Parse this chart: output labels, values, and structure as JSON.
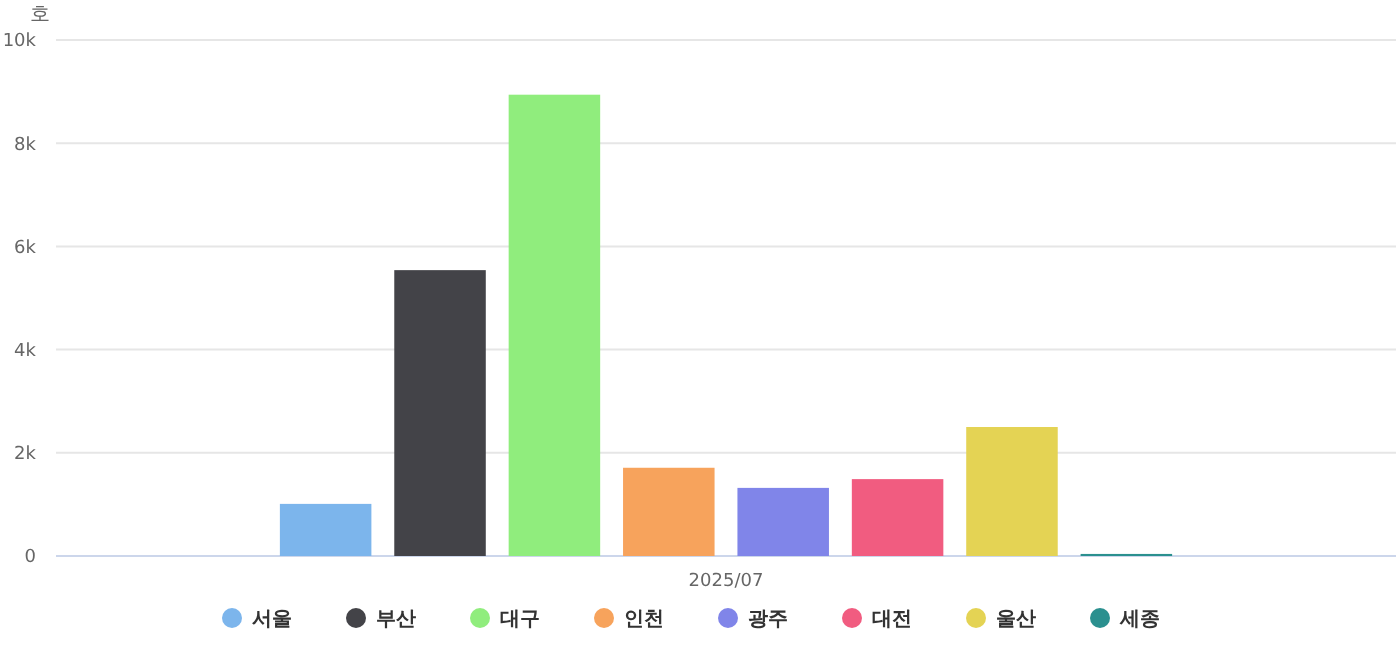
{
  "chart_data": {
    "type": "bar",
    "ylabel": "호",
    "categories": [
      "2025/07"
    ],
    "series": [
      {
        "name": "서울",
        "color": "#7cb5ec",
        "values": [
          1010
        ]
      },
      {
        "name": "부산",
        "color": "#434348",
        "values": [
          5540
        ]
      },
      {
        "name": "대구",
        "color": "#90ed7d",
        "values": [
          8940
        ]
      },
      {
        "name": "인천",
        "color": "#f7a35c",
        "values": [
          1710
        ]
      },
      {
        "name": "광주",
        "color": "#8085e9",
        "values": [
          1320
        ]
      },
      {
        "name": "대전",
        "color": "#f15c80",
        "values": [
          1490
        ]
      },
      {
        "name": "울산",
        "color": "#e4d354",
        "values": [
          2500
        ]
      },
      {
        "name": "세종",
        "color": "#2b908f",
        "values": [
          40
        ]
      }
    ],
    "ylim": [
      0,
      10000
    ],
    "yticks": [
      {
        "value": 0,
        "label": "0"
      },
      {
        "value": 2000,
        "label": "2k"
      },
      {
        "value": 4000,
        "label": "4k"
      },
      {
        "value": 6000,
        "label": "6k"
      },
      {
        "value": 8000,
        "label": "8k"
      },
      {
        "value": 10000,
        "label": "10k"
      }
    ],
    "grid": "y",
    "legend": "bottom",
    "marker": "circle"
  }
}
